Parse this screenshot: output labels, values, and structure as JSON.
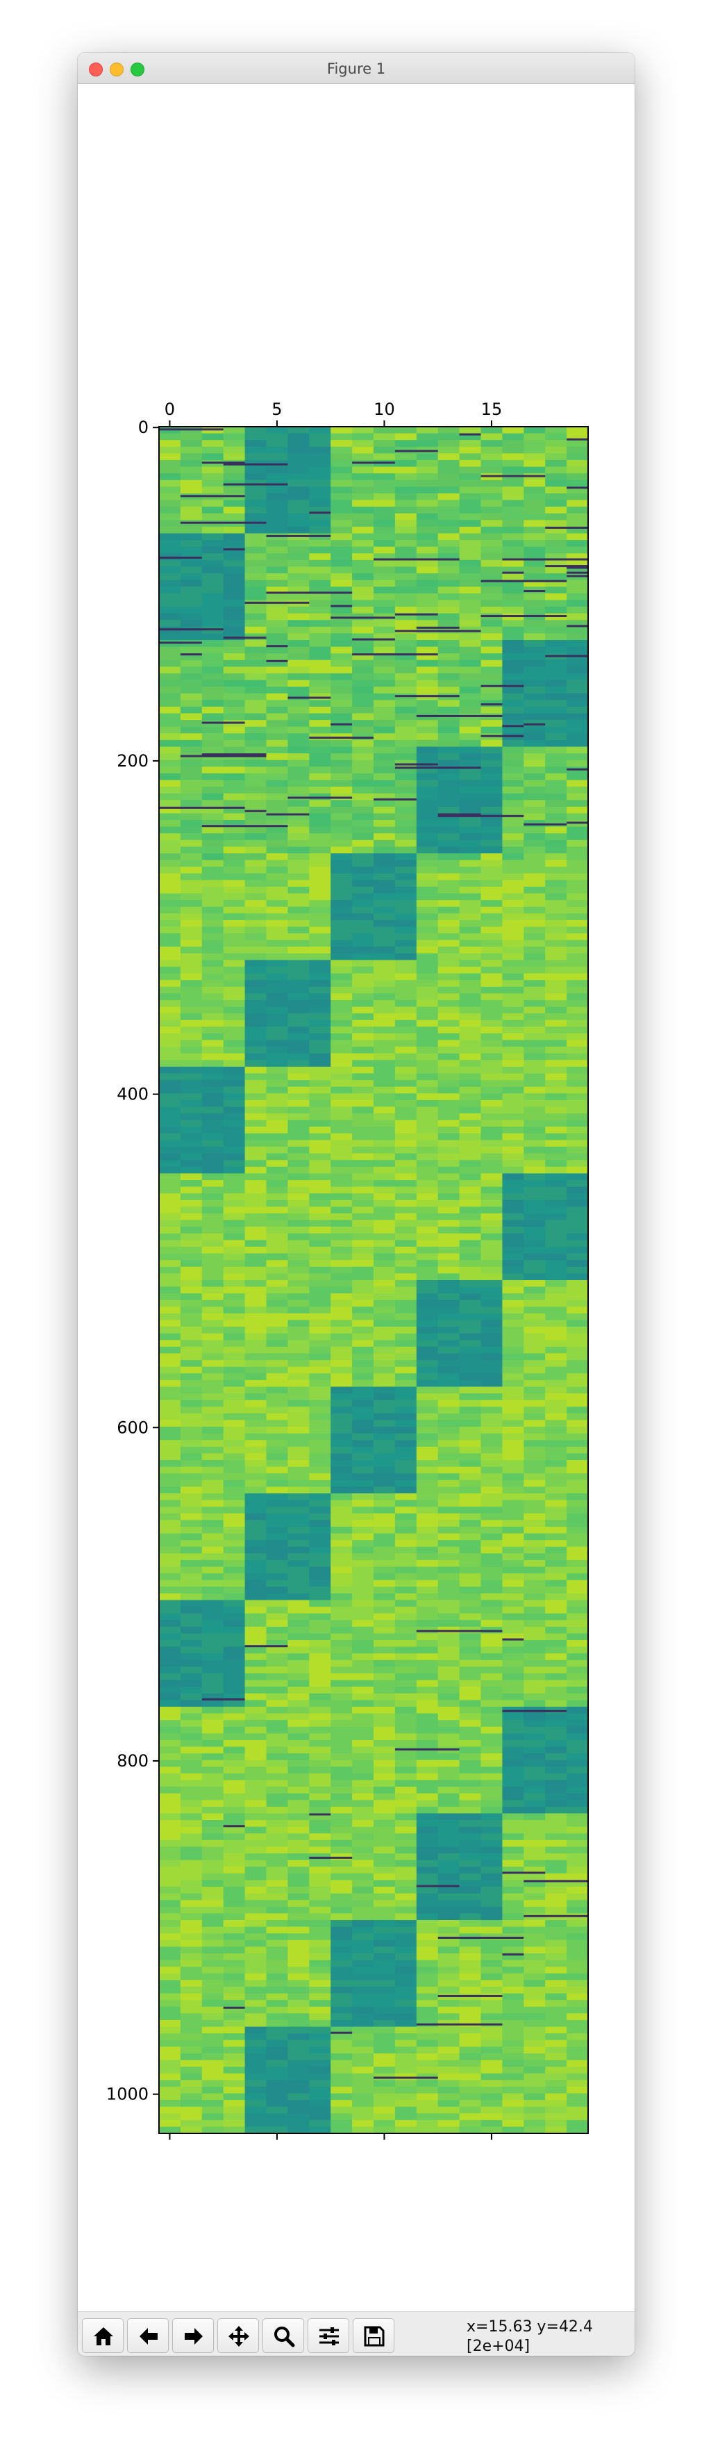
{
  "window": {
    "title": "Figure 1"
  },
  "toolbar": {
    "buttons": [
      {
        "name": "home",
        "icon": "home-icon"
      },
      {
        "name": "back",
        "icon": "arrow-left-icon"
      },
      {
        "name": "forward",
        "icon": "arrow-right-icon"
      },
      {
        "name": "pan",
        "icon": "move-arrows-icon"
      },
      {
        "name": "zoom",
        "icon": "magnifier-icon"
      },
      {
        "name": "configure-subplots",
        "icon": "sliders-icon"
      },
      {
        "name": "save",
        "icon": "floppy-disk-icon"
      }
    ],
    "coord_line1": "x=15.63 y=42.4",
    "coord_line2": "[2e+04]"
  },
  "chart_data": {
    "type": "heatmap",
    "colormap": "viridis",
    "rows": 1024,
    "cols": 20,
    "x_ticks": [
      0,
      5,
      10,
      15
    ],
    "x_tick_labels": [
      "0",
      "5",
      "10",
      "15"
    ],
    "x_ticks_position": "top and bottom (labels on top)",
    "y_ticks": [
      0,
      200,
      400,
      600,
      800,
      1000
    ],
    "y_tick_labels": [
      "0",
      "200",
      "400",
      "600",
      "800",
      "1000"
    ],
    "xlim": [
      -0.5,
      19.5
    ],
    "ylim": [
      1023.5,
      -0.5
    ],
    "block_value_color": "#21908d",
    "background_value_color": "#8ed645",
    "outlier_stripe_color": "#3b2f5f",
    "blocks": [
      {
        "rows": [
          0,
          64
        ],
        "cols": [
          4,
          8
        ]
      },
      {
        "rows": [
          64,
          128
        ],
        "cols": [
          0,
          4
        ]
      },
      {
        "rows": [
          128,
          192
        ],
        "cols": [
          16,
          20
        ]
      },
      {
        "rows": [
          192,
          256
        ],
        "cols": [
          12,
          16
        ]
      },
      {
        "rows": [
          256,
          320
        ],
        "cols": [
          8,
          12
        ]
      },
      {
        "rows": [
          320,
          384
        ],
        "cols": [
          4,
          8
        ]
      },
      {
        "rows": [
          384,
          448
        ],
        "cols": [
          0,
          4
        ]
      },
      {
        "rows": [
          448,
          512
        ],
        "cols": [
          16,
          20
        ]
      },
      {
        "rows": [
          512,
          576
        ],
        "cols": [
          12,
          16
        ]
      },
      {
        "rows": [
          576,
          640
        ],
        "cols": [
          8,
          12
        ]
      },
      {
        "rows": [
          640,
          704
        ],
        "cols": [
          4,
          8
        ]
      },
      {
        "rows": [
          704,
          768
        ],
        "cols": [
          0,
          4
        ]
      },
      {
        "rows": [
          768,
          832
        ],
        "cols": [
          16,
          20
        ]
      },
      {
        "rows": [
          832,
          896
        ],
        "cols": [
          12,
          16
        ]
      },
      {
        "rows": [
          896,
          960
        ],
        "cols": [
          8,
          12
        ]
      },
      {
        "rows": [
          960,
          1024
        ],
        "cols": [
          4,
          8
        ]
      }
    ]
  }
}
